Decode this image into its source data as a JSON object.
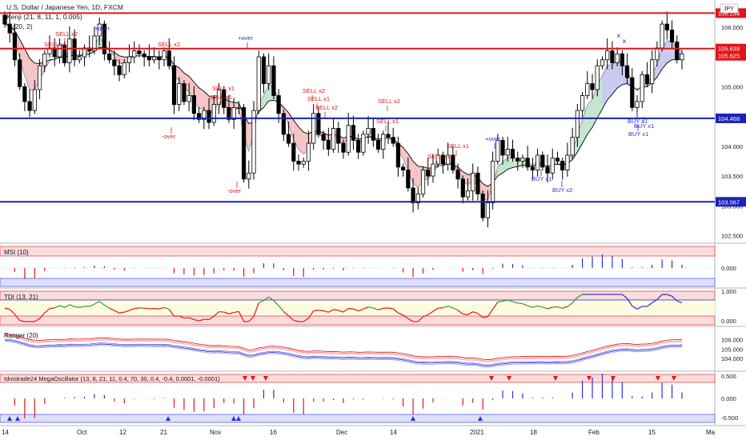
{
  "header": {
    "symbol_title": "U.S. Dollar / Japanese Yen, 1D, FXCM",
    "indicator_line_1": "Kenji (21, 8, 11, 1, 0.005)",
    "indicator_line_2": "(20, 2)",
    "currency_badge": "JPY"
  },
  "price_axis": {
    "ticks": [
      "106.000",
      "105.500",
      "105.000",
      "104.500",
      "104.000",
      "103.500",
      "103.000",
      "102.500"
    ]
  },
  "horizontal_levels": [
    {
      "value": 106.234,
      "label": "106.234",
      "color": "#e0151a",
      "kind": "resistance"
    },
    {
      "value": 105.639,
      "label": "105.639",
      "color": "#e0151a",
      "kind": "resistance"
    },
    {
      "value": 104.468,
      "label": "104.468",
      "color": "#1a23b5",
      "kind": "support"
    },
    {
      "value": 103.067,
      "label": "103.067",
      "color": "#1a23b5",
      "kind": "support"
    }
  ],
  "last_price": {
    "value": 105.625,
    "label": "105.625",
    "color": "#e0151a"
  },
  "time_axis": {
    "ticks": [
      "14",
      "Oct",
      "12",
      "21",
      "Nov",
      "16",
      "Dec",
      "14",
      "2021",
      "18",
      "Feb",
      "15",
      "Ma"
    ]
  },
  "signals": [
    {
      "text": "SELL x2",
      "color": "#e0151a"
    },
    {
      "text": "SELL x1",
      "color": "#e0151a"
    },
    {
      "text": "+over",
      "color": "#2a2ee0"
    },
    {
      "text": "SELL x2",
      "color": "#e0151a"
    },
    {
      "text": "SELL x1",
      "color": "#e0151a"
    },
    {
      "text": "-over",
      "color": "#e0151a"
    },
    {
      "text": "+over",
      "color": "#2a2ee0"
    },
    {
      "text": "-over",
      "color": "#e0151a"
    },
    {
      "text": "SELL x2",
      "color": "#e0151a"
    },
    {
      "text": "SELL x1",
      "color": "#e0151a"
    },
    {
      "text": "SELL x2",
      "color": "#e0151a"
    },
    {
      "text": "SELL x1",
      "color": "#e0151a"
    },
    {
      "text": "SELL x2",
      "color": "#e0151a"
    },
    {
      "text": "SELL x1",
      "color": "#e0151a"
    },
    {
      "text": "SELL x1",
      "color": "#e0151a"
    },
    {
      "text": "SELL x1",
      "color": "#e0151a"
    },
    {
      "text": "+over",
      "color": "#2a2ee0"
    },
    {
      "text": "BUY x1",
      "color": "#2a2ee0"
    },
    {
      "text": "BUY x2",
      "color": "#2a2ee0"
    },
    {
      "text": "BUY x1",
      "color": "#2a2ee0"
    },
    {
      "text": "BUY x1",
      "color": "#2a2ee0"
    },
    {
      "text": "BUY x1",
      "color": "#2a2ee0"
    }
  ],
  "panes": {
    "msi": {
      "title": "MSI (10)",
      "ticks": [
        "0.000"
      ]
    },
    "tdi": {
      "title": "TDI (13, 21)",
      "ticks": [
        "1.000",
        "0.000"
      ]
    },
    "ranger": {
      "title": "Ranger (20)",
      "ticks": [
        "106.000",
        "105.000",
        "104.000"
      ]
    },
    "mega": {
      "title": "Idnistrade24 MegaOscillator (13, 8, 21, 11, 0.4, 70, 30, 0.4, -0.4, 0.0001, -0.0001)",
      "ticks": [
        "0.500",
        "0.000",
        "-0.500"
      ]
    }
  },
  "colors": {
    "bull_candle": "#ffffff",
    "bear_candle": "#000000",
    "cloud_red": "#f5c5c5",
    "cloud_green": "#c5e6cc",
    "cloud_blue": "#c8cbf0",
    "ma_line": "#000000",
    "red_zone": "#fbdcdc",
    "blue_zone": "#dde0f8",
    "yellow_zone": "#fdfbe0"
  },
  "chart_data": {
    "type": "candlestick",
    "title": "U.S. Dollar / Japanese Yen, 1D, FXCM",
    "ylim": [
      102.4,
      106.4
    ],
    "x": [
      "Sep 14",
      "Oct",
      "Oct 12",
      "Oct 21",
      "Nov",
      "Nov 16",
      "Dec",
      "Dec 14",
      "2021",
      "Jan 18",
      "Feb",
      "Feb 15",
      "Mar"
    ],
    "closes": [
      106.05,
      105.9,
      105.45,
      105.0,
      104.75,
      104.6,
      104.95,
      105.35,
      105.55,
      105.65,
      105.5,
      105.7,
      105.4,
      105.8,
      105.45,
      105.5,
      105.65,
      105.6,
      105.85,
      106.05,
      105.55,
      105.45,
      105.35,
      105.2,
      105.4,
      105.5,
      105.6,
      105.55,
      105.5,
      105.45,
      105.5,
      105.45,
      105.6,
      105.35,
      104.7,
      105.05,
      104.75,
      104.85,
      104.55,
      104.45,
      104.6,
      104.4,
      104.7,
      104.95,
      104.65,
      104.45,
      104.65,
      104.65,
      103.45,
      103.55,
      104.6,
      105.5,
      105.05,
      105.35,
      104.85,
      104.55,
      104.2,
      104.05,
      103.75,
      103.7,
      103.75,
      104.05,
      104.55,
      104.2,
      104.1,
      103.95,
      104.3,
      104.05,
      103.9,
      104.35,
      104.1,
      103.9,
      104.2,
      104.3,
      104.1,
      103.95,
      104.2,
      104.15,
      104.05,
      103.65,
      103.6,
      103.3,
      103.05,
      103.2,
      103.6,
      103.5,
      103.7,
      103.85,
      103.7,
      103.85,
      103.6,
      103.45,
      103.15,
      103.25,
      103.55,
      103.2,
      102.8,
      103.05,
      103.75,
      104.1,
      103.85,
      103.95,
      103.8,
      103.75,
      103.8,
      103.65,
      103.6,
      103.85,
      103.65,
      103.55,
      103.8,
      103.75,
      103.6,
      103.85,
      104.15,
      104.6,
      104.85,
      105.05,
      104.95,
      105.35,
      105.45,
      105.6,
      105.4,
      105.55,
      105.35,
      105.15,
      104.65,
      104.75,
      105.2,
      105.05,
      105.45,
      105.65,
      106.05,
      105.95,
      105.75,
      105.45,
      105.55
    ],
    "levels": [
      106.234,
      105.639,
      104.468,
      103.067
    ],
    "last_price": 105.625,
    "yticks": [
      106.0,
      105.5,
      105.0,
      104.5,
      104.0,
      103.5,
      103.0,
      102.5
    ]
  }
}
